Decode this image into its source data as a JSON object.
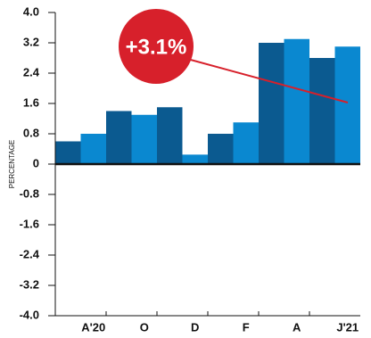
{
  "chart_data": {
    "type": "bar",
    "y_label": "PERCENTAGE",
    "annotation": "+3.1%",
    "categories": [
      null,
      "A'20",
      null,
      "O",
      null,
      "D",
      null,
      "F",
      null,
      "A",
      null,
      "J'21"
    ],
    "values": [
      0.6,
      0.8,
      1.4,
      1.3,
      1.5,
      0.25,
      0.8,
      1.1,
      3.2,
      3.3,
      2.8,
      3.1
    ],
    "colors": [
      "#0b5a90",
      "#0a88d0"
    ],
    "annotation_color": "#d7202b",
    "ylim": [
      -4.0,
      4.0
    ],
    "yticks": [
      {
        "value": 4.0,
        "label": "4.0"
      },
      3.2,
      2.4,
      1.6,
      0.8,
      0,
      -0.8,
      -1.6,
      -2.4,
      -3.2,
      {
        "value": -4.0,
        "label": "-4.0"
      }
    ]
  }
}
